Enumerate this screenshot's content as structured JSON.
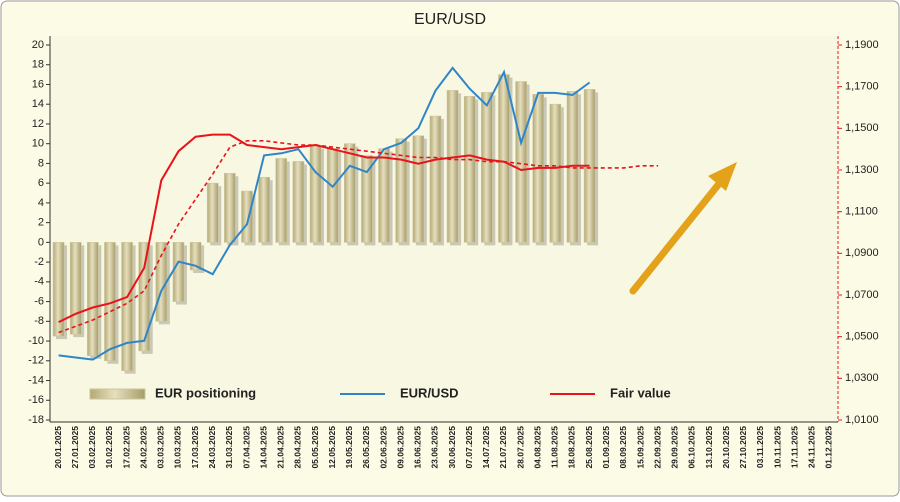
{
  "chart_data": {
    "type": "combo",
    "title": "EUR/USD",
    "categories": [
      "20.01.2025",
      "27.01.2025",
      "03.02.2025",
      "10.02.2025",
      "17.02.2025",
      "24.02.2025",
      "03.03.2025",
      "10.03.2025",
      "17.03.2025",
      "24.03.2025",
      "31.03.2025",
      "07.04.2025",
      "14.04.2025",
      "21.04.2025",
      "28.04.2025",
      "05.05.2025",
      "12.05.2025",
      "19.05.2025",
      "26.05.2025",
      "02.06.2025",
      "09.06.2025",
      "16.06.2025",
      "23.06.2025",
      "30.06.2025",
      "07.07.2025",
      "14.07.2025",
      "21.07.2025",
      "28.07.2025",
      "04.08.2025",
      "11.08.2025",
      "18.08.2025",
      "25.08.2025",
      "01.09.2025",
      "08.09.2025",
      "15.09.2025",
      "22.09.2025",
      "29.09.2025",
      "06.10.2025",
      "13.10.2025",
      "20.10.2025",
      "27.10.2025",
      "03.11.2025",
      "10.11.2025",
      "17.11.2025",
      "24.11.2025",
      "01.12.2025"
    ],
    "series": [
      {
        "name": "EUR positioning",
        "type": "bar",
        "color": "#cfc69a",
        "values": [
          -9.5,
          -9.3,
          -11.5,
          -12,
          -13,
          -11,
          -8,
          -6,
          -2.8,
          6,
          7,
          5.2,
          6.6,
          8.5,
          8.2,
          9.8,
          9.5,
          10,
          8.8,
          9.5,
          10.5,
          10.8,
          12.8,
          15.4,
          14.8,
          15.2,
          17,
          16.3,
          15,
          14,
          15.3,
          15.5,
          null,
          null,
          null,
          null,
          null,
          null,
          null,
          null,
          null,
          null,
          null,
          null,
          null,
          null
        ]
      },
      {
        "name": "EUR/USD",
        "type": "line",
        "axis": "y2",
        "color": "#2e86c8",
        "values": [
          1.041,
          1.04,
          1.039,
          1.044,
          1.047,
          1.048,
          1.072,
          1.086,
          1.084,
          1.08,
          1.094,
          1.104,
          1.137,
          1.138,
          1.14,
          1.129,
          1.122,
          1.132,
          1.129,
          1.14,
          1.143,
          1.15,
          1.168,
          1.179,
          1.169,
          1.161,
          1.177,
          1.143,
          1.167,
          1.167,
          1.166,
          1.172,
          null,
          null,
          null,
          null,
          null,
          null,
          null,
          null,
          null,
          null,
          null,
          null,
          null,
          null
        ]
      },
      {
        "name": "Fair value",
        "type": "line",
        "axis": "y2",
        "color": "#e8141a",
        "values": [
          1.057,
          1.061,
          1.064,
          1.066,
          1.069,
          1.083,
          1.125,
          1.139,
          1.146,
          1.147,
          1.147,
          1.142,
          1.141,
          1.14,
          1.141,
          1.142,
          1.14,
          1.138,
          1.136,
          1.136,
          1.135,
          1.133,
          1.135,
          1.136,
          1.137,
          1.135,
          1.134,
          1.13,
          1.131,
          1.131,
          1.132,
          1.132,
          null,
          null,
          null,
          null,
          null,
          null,
          null,
          null,
          null,
          null,
          null,
          null,
          null,
          null
        ]
      },
      {
        "type": "line",
        "axis": "y2",
        "dash": true,
        "color": "#e8141a",
        "values": [
          1.052,
          1.055,
          1.058,
          1.062,
          1.066,
          1.072,
          1.089,
          1.104,
          1.116,
          1.128,
          1.141,
          1.144,
          1.144,
          1.143,
          1.142,
          1.142,
          1.141,
          1.14,
          1.139,
          1.138,
          1.137,
          1.136,
          1.136,
          1.135,
          1.135,
          1.134,
          1.134,
          1.133,
          1.132,
          1.132,
          1.131,
          1.131,
          1.131,
          1.131,
          1.132,
          1.132,
          null,
          null,
          null,
          null,
          null,
          null,
          null,
          null,
          null,
          null
        ]
      }
    ],
    "ylim": [
      -18,
      20
    ],
    "yticks": [
      -18,
      -16,
      -14,
      -12,
      -10,
      -8,
      -6,
      -4,
      -2,
      0,
      2,
      4,
      6,
      8,
      10,
      12,
      14,
      16,
      18,
      20
    ],
    "y2lim": [
      1.01,
      1.19
    ],
    "y2ticks": [
      {
        "value": 1.01,
        "label": "1,0100"
      },
      {
        "value": 1.03,
        "label": "1,0300"
      },
      {
        "value": 1.05,
        "label": "1,0500"
      },
      {
        "value": 1.07,
        "label": "1,0700"
      },
      {
        "value": 1.09,
        "label": "1,0900"
      },
      {
        "value": 1.11,
        "label": "1,1100"
      },
      {
        "value": 1.13,
        "label": "1,1300"
      },
      {
        "value": 1.15,
        "label": "1,1500"
      },
      {
        "value": 1.17,
        "label": "1,1700"
      },
      {
        "value": 1.19,
        "label": "1,1900"
      }
    ],
    "legend": "bottom"
  }
}
